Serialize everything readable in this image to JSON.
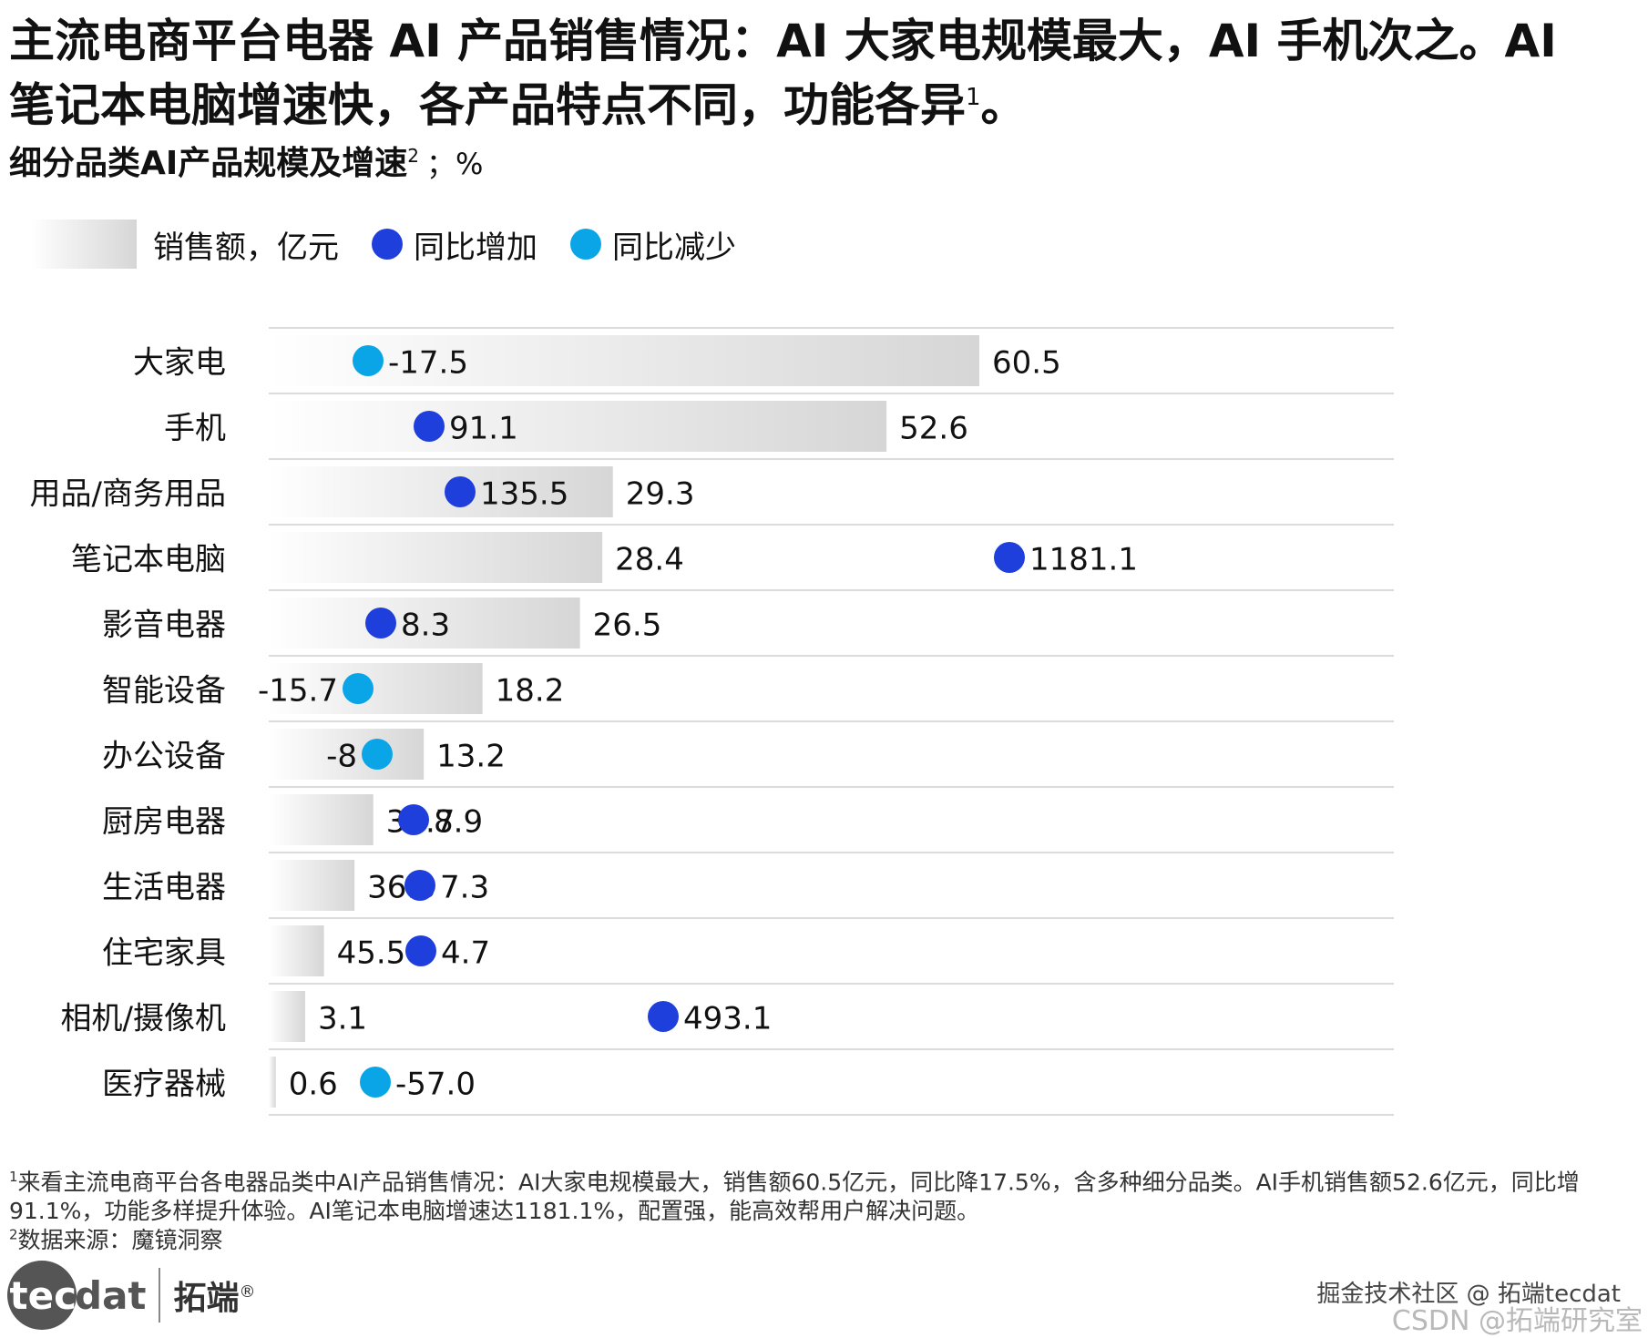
{
  "title_line1": "主流电商平台电器 AI 产品销售情况：AI 大家电规模最大，AI 手机次之。AI",
  "title_line2": "笔记本电脑增速快，各产品特点不同，功能各异",
  "title_sup": "1",
  "title_end": "。",
  "subtitle": "细分品类AI产品规模及增速",
  "subtitle_sup": "2",
  "subtitle_unit": "；%",
  "legend": {
    "bar_label": "销售额，亿元",
    "increase_label": "同比增加",
    "decrease_label": "同比减少"
  },
  "colors": {
    "increase": "#1f3fdc",
    "decrease": "#0aa5e6",
    "bar_end": "#d6d6d6",
    "gridline": "#cfcfcf"
  },
  "chart_data": {
    "type": "bar",
    "orientation": "horizontal",
    "categories": [
      "大家电",
      "手机",
      "用品/商务用品",
      "笔记本电脑",
      "影音电器",
      "智能设备",
      "办公设备",
      "厨房电器",
      "生活电器",
      "住宅家具",
      "相机/摄像机",
      "医疗器械"
    ],
    "sales": [
      60.5,
      52.6,
      29.3,
      28.4,
      26.5,
      18.2,
      13.2,
      36.7,
      36.3,
      45.5,
      3.1,
      0.6
    ],
    "growth": [
      -17.5,
      91.1,
      135.5,
      1181.1,
      8.3,
      -15.7,
      -8,
      8.9,
      7.3,
      4.7,
      493.1,
      -57.0
    ],
    "sales_labels": [
      "60.5",
      "52.6",
      "29.3",
      "28.4",
      "26.5",
      "18.2",
      "13.2",
      "36.7",
      "36.3",
      "45.5",
      "3.1",
      "0.6"
    ],
    "growth_labels": [
      "-17.5",
      "91.1",
      "135.5",
      "1181.1",
      "8.3",
      "-15.7",
      "-8",
      "8.9",
      "7.3",
      "4.7",
      "493.1",
      "-57.0"
    ],
    "series": [
      {
        "name": "销售额，亿元",
        "values": [
          60.5,
          52.6,
          29.3,
          28.4,
          26.5,
          18.2,
          13.2,
          36.7,
          36.3,
          45.5,
          3.1,
          0.6
        ]
      },
      {
        "name": "同比增加 / 同比减少",
        "values": [
          -17.5,
          91.1,
          135.5,
          1181.1,
          8.3,
          -15.7,
          -8,
          8.9,
          7.3,
          4.7,
          493.1,
          -57.0
        ]
      }
    ]
  },
  "footnote": "来看主流电商平台各电器品类中AI产品销售情况：AI大家电规模最大，销售额60.5亿元，同比降17.5%，含多种细分品类。AI手机销售额52.6亿元，同比增91.1%，功能多样提升体验。AI笔记本电脑增速达1181.1%，配置强，能高效帮用户解决问题。",
  "footnote_sup": "1",
  "source": "数据来源：魔镜洞察",
  "source_sup": "2",
  "brand": {
    "logo_left": "tec",
    "logo_right": "dat",
    "cn": "拓端",
    "reg": "®"
  },
  "watermark": "掘金技术社区 @ 拓端tecdat",
  "watermark2": "CSDN @拓端研究室"
}
